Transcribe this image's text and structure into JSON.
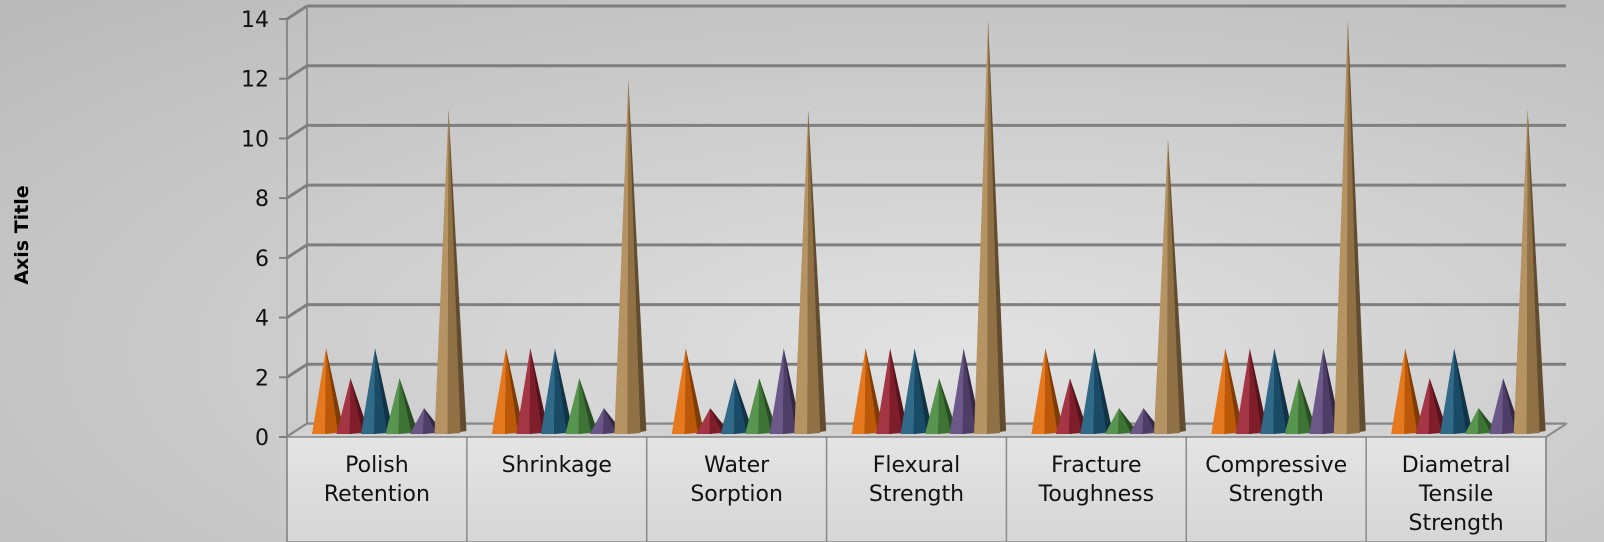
{
  "chart_data": {
    "type": "bar",
    "style": "3d-pyramid",
    "title": "",
    "xlabel": "",
    "ylabel": "Axis Title",
    "ylim": [
      0,
      14
    ],
    "yticks": [
      0,
      2,
      4,
      6,
      8,
      10,
      12,
      14
    ],
    "grid": true,
    "legend": "none",
    "categories": [
      [
        "Polish",
        "Retention"
      ],
      [
        "Shrinkage"
      ],
      [
        "Water",
        "Sorption"
      ],
      [
        "Flexural",
        "Strength"
      ],
      [
        "Fracture",
        "Toughness"
      ],
      [
        "Compressive",
        "Strength"
      ],
      [
        "Diametral",
        "Tensile",
        "Strength"
      ]
    ],
    "series": [
      {
        "color": "#E46C0A",
        "values": [
          3,
          3,
          3,
          3,
          3,
          3,
          3
        ]
      },
      {
        "color": "#9B2335",
        "values": [
          2,
          3,
          1,
          3,
          2,
          3,
          2
        ]
      },
      {
        "color": "#1F5C7E",
        "values": [
          3,
          3,
          2,
          3,
          3,
          3,
          3
        ]
      },
      {
        "color": "#4A8C3F",
        "values": [
          2,
          2,
          2,
          2,
          1,
          2,
          1
        ]
      },
      {
        "color": "#5E4A7E",
        "values": [
          1,
          1,
          3,
          3,
          1,
          3,
          2
        ]
      },
      {
        "color": "#B08A55",
        "values": [
          11,
          12,
          11,
          14,
          10,
          14,
          11
        ]
      }
    ]
  }
}
